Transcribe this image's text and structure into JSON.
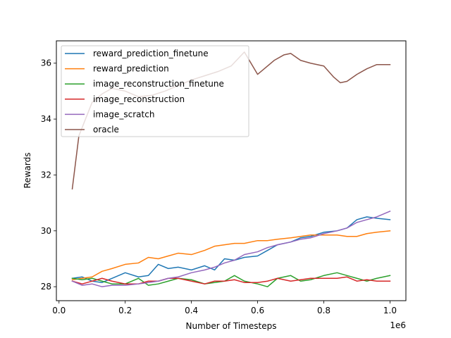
{
  "chart_data": {
    "type": "line",
    "title": "",
    "xlabel": "Number of Timesteps",
    "ylabel": "Rewards",
    "x_offset_label": "1e6",
    "xlim": [
      -0.008,
      1.048
    ],
    "ylim": [
      27.5,
      36.8
    ],
    "xticks": [
      0.0,
      0.2,
      0.4,
      0.6,
      0.8,
      1.0
    ],
    "xtick_labels": [
      "0.0",
      "0.2",
      "0.4",
      "0.6",
      "0.8",
      "1.0"
    ],
    "yticks": [
      28,
      30,
      32,
      34,
      36
    ],
    "ytick_labels": [
      "28",
      "30",
      "32",
      "34",
      "36"
    ],
    "grid": false,
    "legend_position": "upper left",
    "series": [
      {
        "name": "reward_prediction_finetune",
        "color": "#1f77b4",
        "x": [
          0.04,
          0.07,
          0.1,
          0.13,
          0.16,
          0.2,
          0.24,
          0.27,
          0.3,
          0.33,
          0.36,
          0.4,
          0.44,
          0.47,
          0.5,
          0.53,
          0.56,
          0.6,
          0.63,
          0.66,
          0.7,
          0.73,
          0.76,
          0.8,
          0.84,
          0.87,
          0.9,
          0.93,
          0.96,
          1.0
        ],
        "values": [
          28.3,
          28.35,
          28.2,
          28.15,
          28.3,
          28.5,
          28.35,
          28.4,
          28.8,
          28.65,
          28.7,
          28.6,
          28.75,
          28.6,
          29.0,
          28.95,
          29.05,
          29.1,
          29.3,
          29.5,
          29.6,
          29.75,
          29.8,
          29.95,
          30.0,
          30.1,
          30.4,
          30.5,
          30.45,
          30.4
        ]
      },
      {
        "name": "reward_prediction",
        "color": "#ff7f0e",
        "x": [
          0.04,
          0.07,
          0.1,
          0.13,
          0.16,
          0.2,
          0.24,
          0.27,
          0.3,
          0.33,
          0.36,
          0.4,
          0.44,
          0.47,
          0.5,
          0.53,
          0.56,
          0.6,
          0.63,
          0.66,
          0.7,
          0.73,
          0.76,
          0.8,
          0.84,
          0.87,
          0.9,
          0.93,
          0.96,
          1.0
        ],
        "values": [
          28.25,
          28.3,
          28.35,
          28.55,
          28.65,
          28.8,
          28.85,
          29.05,
          29.0,
          29.1,
          29.2,
          29.15,
          29.3,
          29.45,
          29.5,
          29.55,
          29.55,
          29.65,
          29.65,
          29.7,
          29.75,
          29.8,
          29.85,
          29.85,
          29.85,
          29.8,
          29.8,
          29.9,
          29.95,
          30.0
        ]
      },
      {
        "name": "image_reconstruction_finetune",
        "color": "#2ca02c",
        "x": [
          0.04,
          0.07,
          0.1,
          0.13,
          0.16,
          0.2,
          0.24,
          0.27,
          0.3,
          0.33,
          0.36,
          0.4,
          0.44,
          0.47,
          0.5,
          0.53,
          0.56,
          0.6,
          0.63,
          0.66,
          0.7,
          0.73,
          0.76,
          0.8,
          0.84,
          0.87,
          0.9,
          0.93,
          0.96,
          1.0
        ],
        "values": [
          28.3,
          28.25,
          28.3,
          28.2,
          28.1,
          28.1,
          28.3,
          28.05,
          28.1,
          28.2,
          28.3,
          28.25,
          28.1,
          28.15,
          28.2,
          28.4,
          28.2,
          28.1,
          28.0,
          28.3,
          28.4,
          28.2,
          28.25,
          28.4,
          28.5,
          28.4,
          28.3,
          28.2,
          28.3,
          28.4
        ]
      },
      {
        "name": "image_reconstruction",
        "color": "#d62728",
        "x": [
          0.04,
          0.07,
          0.1,
          0.13,
          0.16,
          0.2,
          0.24,
          0.27,
          0.3,
          0.33,
          0.36,
          0.4,
          0.44,
          0.47,
          0.5,
          0.53,
          0.56,
          0.6,
          0.63,
          0.66,
          0.7,
          0.73,
          0.76,
          0.8,
          0.84,
          0.87,
          0.9,
          0.93,
          0.96,
          1.0
        ],
        "values": [
          28.2,
          28.1,
          28.2,
          28.3,
          28.2,
          28.1,
          28.1,
          28.2,
          28.2,
          28.3,
          28.3,
          28.2,
          28.1,
          28.2,
          28.2,
          28.25,
          28.15,
          28.15,
          28.2,
          28.3,
          28.2,
          28.25,
          28.3,
          28.3,
          28.3,
          28.35,
          28.2,
          28.25,
          28.2,
          28.2
        ]
      },
      {
        "name": "image_scratch",
        "color": "#9467bd",
        "x": [
          0.04,
          0.07,
          0.1,
          0.13,
          0.16,
          0.2,
          0.24,
          0.27,
          0.3,
          0.33,
          0.36,
          0.4,
          0.44,
          0.47,
          0.5,
          0.53,
          0.56,
          0.6,
          0.63,
          0.66,
          0.7,
          0.73,
          0.76,
          0.8,
          0.84,
          0.87,
          0.9,
          0.93,
          0.96,
          1.0
        ],
        "values": [
          28.2,
          28.05,
          28.1,
          28.0,
          28.05,
          28.05,
          28.1,
          28.15,
          28.2,
          28.3,
          28.35,
          28.5,
          28.6,
          28.7,
          28.85,
          28.95,
          29.15,
          29.25,
          29.4,
          29.5,
          29.6,
          29.7,
          29.75,
          29.9,
          30.0,
          30.1,
          30.3,
          30.4,
          30.5,
          30.7
        ]
      },
      {
        "name": "oracle",
        "color": "#8c564b",
        "x": [
          0.04,
          0.06,
          0.08,
          0.1,
          0.13,
          0.16,
          0.2,
          0.24,
          0.28,
          0.32,
          0.36,
          0.4,
          0.44,
          0.48,
          0.52,
          0.56,
          0.58,
          0.6,
          0.62,
          0.65,
          0.68,
          0.7,
          0.73,
          0.76,
          0.8,
          0.83,
          0.85,
          0.87,
          0.9,
          0.93,
          0.96,
          1.0
        ],
        "values": [
          31.5,
          33.4,
          34.0,
          34.6,
          34.9,
          35.1,
          35.0,
          34.8,
          34.85,
          35.0,
          35.2,
          35.4,
          35.55,
          35.7,
          35.9,
          36.4,
          36.0,
          35.6,
          35.8,
          36.1,
          36.3,
          36.35,
          36.1,
          36.0,
          35.9,
          35.5,
          35.3,
          35.35,
          35.6,
          35.8,
          35.95,
          35.95
        ]
      }
    ]
  }
}
